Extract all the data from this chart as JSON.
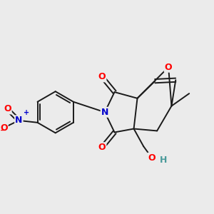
{
  "background_color": "#ebebeb",
  "bond_color": "#1a1a1a",
  "atom_colors": {
    "O": "#ff0000",
    "N": "#0000cc",
    "H": "#4a9a9a",
    "C": "#1a1a1a"
  },
  "figsize": [
    3.0,
    3.0
  ],
  "dpi": 100
}
